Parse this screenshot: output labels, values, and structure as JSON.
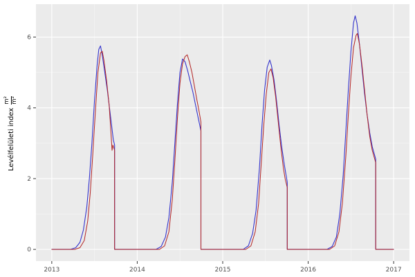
{
  "chart_data": {
    "type": "line",
    "title": "",
    "xlabel": "",
    "ylabel": "Levélfelületi index",
    "ylabel_unit_numerator": "m²",
    "ylabel_unit_denominator": "m²",
    "grid": true,
    "legend": "none",
    "panel_bg": "#EBEBEB",
    "grid_major_color": "#FFFFFF",
    "grid_minor_color": "#F7F7F7",
    "tick_color": "#333333",
    "tick_label_color": "#4D4D4D",
    "xlim": [
      2012.815,
      2017.185
    ],
    "ylim": [
      -0.33,
      6.93
    ],
    "x_ticks": [
      2013,
      2014,
      2015,
      2016,
      2017
    ],
    "x_tick_labels": [
      "2013",
      "2014",
      "2015",
      "2016",
      "2017"
    ],
    "x_minor": [
      2013.5,
      2014.5,
      2015.5,
      2016.5
    ],
    "y_ticks": [
      0,
      2,
      4,
      6
    ],
    "y_tick_labels": [
      "0",
      "2",
      "4",
      "6"
    ],
    "y_minor": [
      1,
      3,
      5
    ],
    "series": [
      {
        "name": "simulated-lai-blue",
        "color": "#3333CC",
        "width": 1.1,
        "points": [
          [
            2013.0,
            0
          ],
          [
            2013.22,
            0
          ],
          [
            2013.28,
            0.05
          ],
          [
            2013.33,
            0.2
          ],
          [
            2013.37,
            0.55
          ],
          [
            2013.41,
            1.2
          ],
          [
            2013.44,
            2.0
          ],
          [
            2013.47,
            3.0
          ],
          [
            2013.5,
            4.2
          ],
          [
            2013.53,
            5.2
          ],
          [
            2013.55,
            5.65
          ],
          [
            2013.57,
            5.75
          ],
          [
            2013.59,
            5.5
          ],
          [
            2013.62,
            5.0
          ],
          [
            2013.65,
            4.5
          ],
          [
            2013.68,
            3.9
          ],
          [
            2013.7,
            3.5
          ],
          [
            2013.72,
            3.1
          ],
          [
            2013.735,
            2.95
          ],
          [
            2013.735,
            0
          ],
          [
            2013.9,
            0
          ],
          [
            2014.22,
            0
          ],
          [
            2014.28,
            0.08
          ],
          [
            2014.33,
            0.35
          ],
          [
            2014.37,
            0.9
          ],
          [
            2014.41,
            1.9
          ],
          [
            2014.44,
            3.0
          ],
          [
            2014.47,
            4.1
          ],
          [
            2014.5,
            5.0
          ],
          [
            2014.53,
            5.38
          ],
          [
            2014.56,
            5.3
          ],
          [
            2014.59,
            5.05
          ],
          [
            2014.62,
            4.75
          ],
          [
            2014.65,
            4.45
          ],
          [
            2014.68,
            4.1
          ],
          [
            2014.71,
            3.75
          ],
          [
            2014.745,
            3.35
          ],
          [
            2014.745,
            0
          ],
          [
            2014.9,
            0
          ],
          [
            2015.24,
            0
          ],
          [
            2015.3,
            0.1
          ],
          [
            2015.35,
            0.45
          ],
          [
            2015.39,
            1.1
          ],
          [
            2015.43,
            2.3
          ],
          [
            2015.46,
            3.5
          ],
          [
            2015.49,
            4.5
          ],
          [
            2015.52,
            5.15
          ],
          [
            2015.55,
            5.35
          ],
          [
            2015.57,
            5.2
          ],
          [
            2015.6,
            4.8
          ],
          [
            2015.63,
            4.2
          ],
          [
            2015.66,
            3.5
          ],
          [
            2015.69,
            2.9
          ],
          [
            2015.72,
            2.4
          ],
          [
            2015.755,
            1.9
          ],
          [
            2015.755,
            0
          ],
          [
            2015.9,
            0
          ],
          [
            2016.22,
            0
          ],
          [
            2016.28,
            0.08
          ],
          [
            2016.33,
            0.35
          ],
          [
            2016.37,
            1.0
          ],
          [
            2016.41,
            2.1
          ],
          [
            2016.44,
            3.3
          ],
          [
            2016.47,
            4.5
          ],
          [
            2016.5,
            5.6
          ],
          [
            2016.53,
            6.4
          ],
          [
            2016.55,
            6.6
          ],
          [
            2016.57,
            6.4
          ],
          [
            2016.6,
            5.8
          ],
          [
            2016.63,
            5.1
          ],
          [
            2016.66,
            4.4
          ],
          [
            2016.69,
            3.8
          ],
          [
            2016.72,
            3.3
          ],
          [
            2016.75,
            2.9
          ],
          [
            2016.79,
            2.55
          ],
          [
            2016.79,
            0
          ],
          [
            2017.0,
            0
          ]
        ]
      },
      {
        "name": "measured-lai-red",
        "color": "#B22222",
        "width": 1.0,
        "points": [
          [
            2013.0,
            0
          ],
          [
            2013.27,
            0
          ],
          [
            2013.33,
            0.05
          ],
          [
            2013.38,
            0.25
          ],
          [
            2013.42,
            0.8
          ],
          [
            2013.45,
            1.6
          ],
          [
            2013.48,
            2.7
          ],
          [
            2013.51,
            3.9
          ],
          [
            2013.54,
            5.0
          ],
          [
            2013.57,
            5.55
          ],
          [
            2013.59,
            5.6
          ],
          [
            2013.61,
            5.35
          ],
          [
            2013.64,
            4.8
          ],
          [
            2013.67,
            4.1
          ],
          [
            2013.69,
            3.4
          ],
          [
            2013.705,
            2.8
          ],
          [
            2013.715,
            2.95
          ],
          [
            2013.735,
            2.8
          ],
          [
            2013.735,
            0
          ],
          [
            2013.9,
            0
          ],
          [
            2014.26,
            0
          ],
          [
            2014.32,
            0.1
          ],
          [
            2014.37,
            0.5
          ],
          [
            2014.41,
            1.4
          ],
          [
            2014.44,
            2.5
          ],
          [
            2014.47,
            3.7
          ],
          [
            2014.5,
            4.7
          ],
          [
            2014.53,
            5.25
          ],
          [
            2014.56,
            5.45
          ],
          [
            2014.585,
            5.5
          ],
          [
            2014.61,
            5.3
          ],
          [
            2014.64,
            5.0
          ],
          [
            2014.67,
            4.6
          ],
          [
            2014.7,
            4.2
          ],
          [
            2014.72,
            3.95
          ],
          [
            2014.745,
            3.6
          ],
          [
            2014.745,
            0
          ],
          [
            2014.9,
            0
          ],
          [
            2015.27,
            0
          ],
          [
            2015.33,
            0.1
          ],
          [
            2015.38,
            0.5
          ],
          [
            2015.42,
            1.3
          ],
          [
            2015.45,
            2.4
          ],
          [
            2015.48,
            3.5
          ],
          [
            2015.51,
            4.4
          ],
          [
            2015.54,
            5.0
          ],
          [
            2015.565,
            5.1
          ],
          [
            2015.59,
            4.85
          ],
          [
            2015.62,
            4.3
          ],
          [
            2015.65,
            3.6
          ],
          [
            2015.68,
            2.9
          ],
          [
            2015.71,
            2.3
          ],
          [
            2015.73,
            2.0
          ],
          [
            2015.755,
            1.75
          ],
          [
            2015.755,
            0
          ],
          [
            2015.9,
            0
          ],
          [
            2016.25,
            0
          ],
          [
            2016.31,
            0.1
          ],
          [
            2016.36,
            0.5
          ],
          [
            2016.4,
            1.3
          ],
          [
            2016.44,
            2.6
          ],
          [
            2016.47,
            3.8
          ],
          [
            2016.5,
            4.9
          ],
          [
            2016.53,
            5.7
          ],
          [
            2016.56,
            6.05
          ],
          [
            2016.575,
            6.1
          ],
          [
            2016.6,
            5.8
          ],
          [
            2016.63,
            5.2
          ],
          [
            2016.66,
            4.5
          ],
          [
            2016.69,
            3.8
          ],
          [
            2016.72,
            3.2
          ],
          [
            2016.75,
            2.8
          ],
          [
            2016.79,
            2.45
          ],
          [
            2016.79,
            0
          ],
          [
            2017.0,
            0
          ]
        ]
      }
    ]
  }
}
